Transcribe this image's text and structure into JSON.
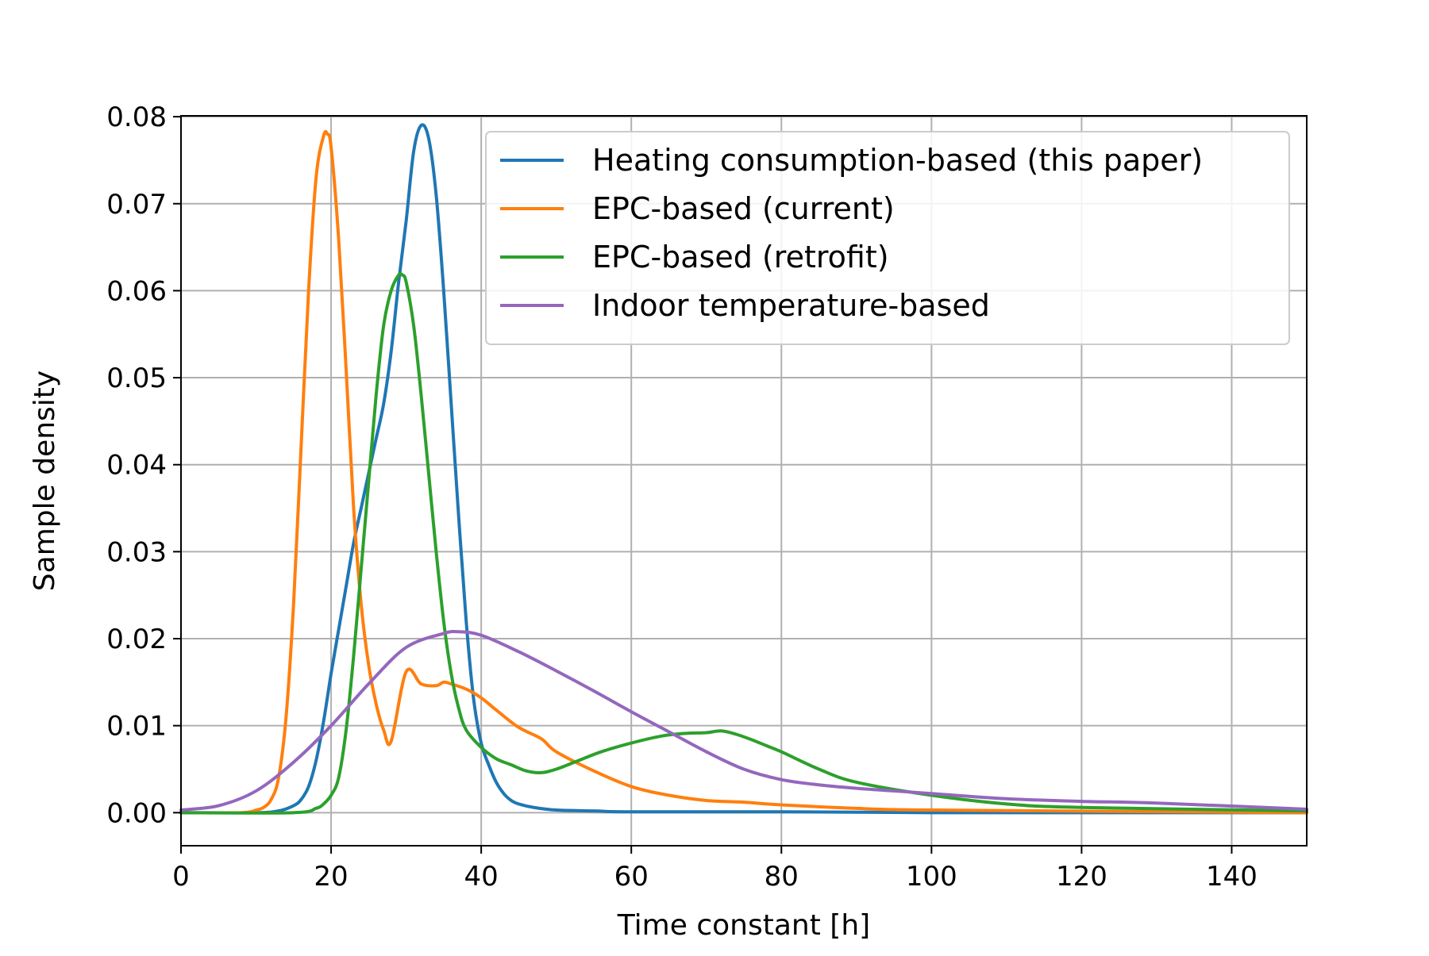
{
  "chart_data": {
    "type": "line",
    "title": "",
    "xlabel": "Time constant [h]",
    "ylabel": "Sample density",
    "xlim": [
      0,
      150
    ],
    "ylim": [
      -0.0038,
      0.0801
    ],
    "grid": true,
    "legend_position": "top-right",
    "xticks": [
      0,
      20,
      40,
      60,
      80,
      100,
      120,
      140
    ],
    "xtick_labels": [
      "0",
      "20",
      "40",
      "60",
      "80",
      "100",
      "120",
      "140"
    ],
    "yticks": [
      0.0,
      0.01,
      0.02,
      0.03,
      0.04,
      0.05,
      0.06,
      0.07,
      0.08
    ],
    "ytick_labels": [
      "0.00",
      "0.01",
      "0.02",
      "0.03",
      "0.04",
      "0.05",
      "0.06",
      "0.07",
      "0.08"
    ],
    "series": [
      {
        "name": "Heating consumption-based (this paper)",
        "color": "#1f77b4",
        "x": [
          0,
          10,
          13,
          15,
          16,
          17,
          18,
          19,
          20,
          21,
          22,
          23,
          24,
          25,
          26,
          27,
          28,
          29,
          30,
          31,
          32,
          33,
          34,
          35,
          36,
          37,
          38,
          39,
          40,
          41,
          42,
          43,
          44,
          45,
          47,
          50,
          55,
          60,
          80,
          100,
          150
        ],
        "y": [
          0,
          0,
          0.0002,
          0.0008,
          0.0015,
          0.003,
          0.006,
          0.0105,
          0.016,
          0.021,
          0.026,
          0.031,
          0.035,
          0.039,
          0.043,
          0.047,
          0.053,
          0.061,
          0.068,
          0.076,
          0.079,
          0.0775,
          0.071,
          0.06,
          0.047,
          0.034,
          0.022,
          0.013,
          0.008,
          0.0055,
          0.0035,
          0.0022,
          0.0014,
          0.001,
          0.0006,
          0.0003,
          0.0002,
          0.0001,
          0.0001,
          0,
          0
        ]
      },
      {
        "name": "EPC-based (current)",
        "color": "#ff7f0e",
        "x": [
          0,
          8,
          10,
          11,
          12,
          13,
          14,
          15,
          16,
          17,
          18,
          19,
          19.5,
          20,
          21,
          22,
          23,
          24,
          25,
          26,
          27,
          28,
          30,
          32,
          34,
          35,
          36,
          38,
          40,
          42,
          45,
          48,
          50,
          55,
          60,
          65,
          70,
          75,
          80,
          90,
          100,
          150
        ],
        "y": [
          0,
          0,
          0.0003,
          0.0006,
          0.0015,
          0.004,
          0.011,
          0.024,
          0.042,
          0.06,
          0.073,
          0.0778,
          0.078,
          0.0765,
          0.066,
          0.051,
          0.035,
          0.024,
          0.017,
          0.0125,
          0.0095,
          0.0082,
          0.0162,
          0.0148,
          0.0146,
          0.015,
          0.0148,
          0.0142,
          0.0132,
          0.0118,
          0.0098,
          0.0085,
          0.007,
          0.0048,
          0.003,
          0.002,
          0.0014,
          0.0012,
          0.0009,
          0.0005,
          0.0003,
          0
        ]
      },
      {
        "name": "EPC-based (retrofit)",
        "color": "#2ca02c",
        "x": [
          0,
          15,
          18,
          19,
          20,
          21,
          22,
          23,
          24,
          25,
          26,
          27,
          28,
          29,
          29.5,
          30,
          31,
          32,
          33,
          34,
          35,
          36,
          37,
          38,
          40,
          42,
          44,
          46,
          48,
          50,
          53,
          56,
          60,
          64,
          67,
          70,
          72,
          74,
          76,
          78,
          80,
          85,
          90,
          100,
          110,
          120,
          150
        ],
        "y": [
          0,
          0,
          0.0005,
          0.001,
          0.002,
          0.004,
          0.0095,
          0.018,
          0.028,
          0.038,
          0.048,
          0.056,
          0.06,
          0.0618,
          0.0618,
          0.061,
          0.056,
          0.048,
          0.039,
          0.03,
          0.022,
          0.016,
          0.012,
          0.0095,
          0.0075,
          0.0062,
          0.0055,
          0.0048,
          0.0046,
          0.005,
          0.006,
          0.007,
          0.008,
          0.0088,
          0.0091,
          0.0092,
          0.0094,
          0.009,
          0.0084,
          0.0077,
          0.007,
          0.005,
          0.0035,
          0.002,
          0.001,
          0.0006,
          0.0002
        ]
      },
      {
        "name": "Indoor temperature-based",
        "color": "#9467bd",
        "x": [
          0,
          5,
          10,
          15,
          20,
          25,
          30,
          35,
          37,
          40,
          45,
          50,
          55,
          60,
          65,
          70,
          75,
          80,
          85,
          90,
          95,
          100,
          110,
          120,
          130,
          150
        ],
        "y": [
          0.0003,
          0.0008,
          0.0025,
          0.0058,
          0.01,
          0.0148,
          0.019,
          0.0206,
          0.0208,
          0.0204,
          0.0185,
          0.0163,
          0.014,
          0.0116,
          0.0093,
          0.007,
          0.005,
          0.0038,
          0.0032,
          0.0028,
          0.0025,
          0.0022,
          0.0016,
          0.0013,
          0.0011,
          0.0004
        ]
      }
    ]
  }
}
